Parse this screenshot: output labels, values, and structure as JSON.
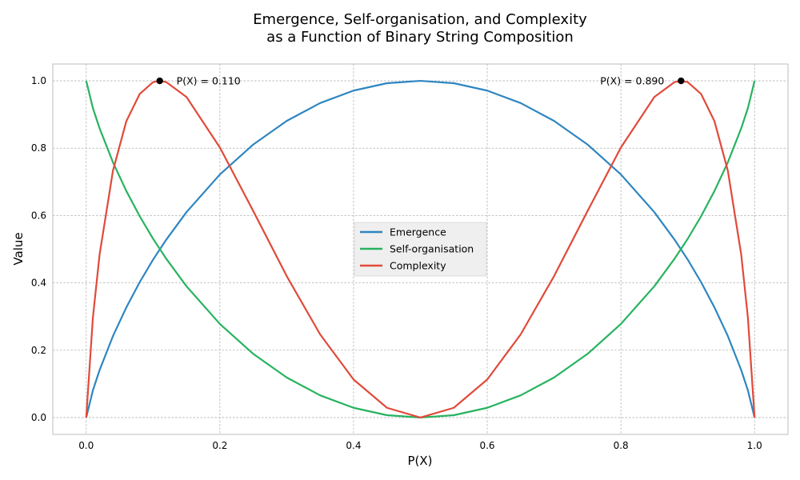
{
  "chart_data": {
    "type": "line",
    "title_lines": [
      "Emergence, Self-organisation, and Complexity",
      "as a Function of Binary String Composition"
    ],
    "xlabel": "P(X)",
    "ylabel": "Value",
    "xlim": [
      -0.05,
      1.05
    ],
    "ylim": [
      -0.05,
      1.05
    ],
    "xticks": [
      0.0,
      0.2,
      0.4,
      0.6,
      0.8,
      1.0
    ],
    "yticks": [
      0.0,
      0.2,
      0.4,
      0.6,
      0.8,
      1.0
    ],
    "xtick_labels": [
      "0.0",
      "0.2",
      "0.4",
      "0.6",
      "0.8",
      "1.0"
    ],
    "ytick_labels": [
      "0.0",
      "0.2",
      "0.4",
      "0.6",
      "0.8",
      "1.0"
    ],
    "grid": true,
    "legend_position": "center",
    "series": [
      {
        "name": "Emergence",
        "color": "#2e86c1",
        "x": [
          0.0,
          0.01,
          0.02,
          0.04,
          0.06,
          0.08,
          0.1,
          0.12,
          0.15,
          0.2,
          0.25,
          0.3,
          0.35,
          0.4,
          0.45,
          0.5,
          0.55,
          0.6,
          0.65,
          0.7,
          0.75,
          0.8,
          0.85,
          0.88,
          0.9,
          0.92,
          0.94,
          0.96,
          0.98,
          0.99,
          1.0
        ],
        "y": [
          0.0,
          0.081,
          0.141,
          0.242,
          0.327,
          0.402,
          0.469,
          0.529,
          0.61,
          0.722,
          0.811,
          0.881,
          0.934,
          0.971,
          0.993,
          1.0,
          0.993,
          0.971,
          0.934,
          0.881,
          0.811,
          0.722,
          0.61,
          0.529,
          0.469,
          0.402,
          0.327,
          0.242,
          0.141,
          0.081,
          0.0
        ]
      },
      {
        "name": "Self-organisation",
        "color": "#27b35f",
        "x": [
          0.0,
          0.01,
          0.02,
          0.04,
          0.06,
          0.08,
          0.1,
          0.12,
          0.15,
          0.2,
          0.25,
          0.3,
          0.35,
          0.4,
          0.45,
          0.5,
          0.55,
          0.6,
          0.65,
          0.7,
          0.75,
          0.8,
          0.85,
          0.88,
          0.9,
          0.92,
          0.94,
          0.96,
          0.98,
          0.99,
          1.0
        ],
        "y": [
          1.0,
          0.919,
          0.859,
          0.758,
          0.673,
          0.598,
          0.531,
          0.471,
          0.39,
          0.278,
          0.189,
          0.119,
          0.066,
          0.029,
          0.007,
          0.0,
          0.007,
          0.029,
          0.066,
          0.119,
          0.189,
          0.278,
          0.39,
          0.471,
          0.531,
          0.598,
          0.673,
          0.758,
          0.859,
          0.919,
          1.0
        ]
      },
      {
        "name": "Complexity",
        "color": "#e04a3a",
        "x": [
          0.0,
          0.01,
          0.02,
          0.04,
          0.06,
          0.08,
          0.1,
          0.11,
          0.12,
          0.15,
          0.2,
          0.25,
          0.3,
          0.35,
          0.4,
          0.45,
          0.5,
          0.55,
          0.6,
          0.65,
          0.7,
          0.75,
          0.8,
          0.85,
          0.88,
          0.89,
          0.9,
          0.92,
          0.94,
          0.96,
          0.98,
          0.99,
          1.0
        ],
        "y": [
          0.0,
          0.297,
          0.484,
          0.733,
          0.88,
          0.961,
          0.996,
          1.0,
          0.996,
          0.952,
          0.802,
          0.613,
          0.42,
          0.247,
          0.113,
          0.029,
          0.0,
          0.029,
          0.113,
          0.247,
          0.42,
          0.613,
          0.802,
          0.952,
          0.996,
          1.0,
          0.996,
          0.961,
          0.88,
          0.733,
          0.484,
          0.297,
          0.0
        ]
      }
    ],
    "annotations": [
      {
        "x": 0.11,
        "y": 1.0,
        "text": "P(X) = 0.110",
        "side": "right"
      },
      {
        "x": 0.89,
        "y": 1.0,
        "text": "P(X) = 0.890",
        "side": "left"
      }
    ]
  }
}
